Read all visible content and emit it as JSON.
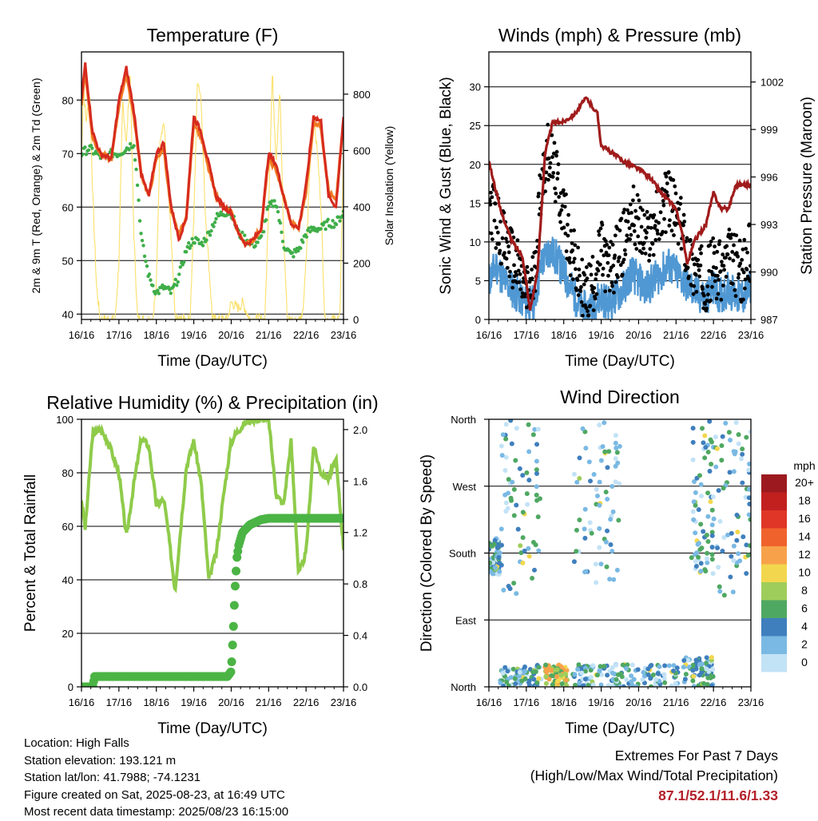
{
  "colors": {
    "temp2m": "#d62a1f",
    "temp9m": "#f07a22",
    "dewpoint": "#3fae49",
    "solar": "#fbe06a",
    "wind": "#5098d3",
    "gust": "#000000",
    "pressure": "#a01b1b",
    "rh": "#8fcb4a",
    "precip": "#4bb444",
    "extremes": "#b3202a"
  },
  "time_ticks": [
    "16/16",
    "17/16",
    "18/16",
    "19/16",
    "20/16",
    "21/16",
    "22/16",
    "23/16"
  ],
  "chart_data": [
    {
      "type": "line",
      "title": "Temperature (F)",
      "xlabel": "Time (Day/UTC)",
      "ylabel": "2m & 9m T (Red, Orange) & 2m Td (Green)",
      "y2label": "Solar Insolation (Yellow)",
      "ylim": [
        39,
        89
      ],
      "y2lim": [
        0,
        950
      ],
      "y_ticks": [
        40,
        50,
        60,
        70,
        80
      ],
      "y2_ticks": [
        0,
        200,
        400,
        600,
        800
      ],
      "x_ticks": [
        "16/16",
        "17/16",
        "18/16",
        "19/16",
        "20/16",
        "21/16",
        "22/16",
        "23/16"
      ],
      "grid": true,
      "series": [
        {
          "key": "temp2m",
          "x": [
            0,
            0.1,
            0.2,
            0.3,
            0.5,
            0.8,
            1.0,
            1.2,
            1.4,
            1.6,
            1.8,
            2.0,
            2.2,
            2.4,
            2.6,
            2.8,
            3.0,
            3.2,
            3.4,
            3.6,
            3.8,
            4.0,
            4.2,
            4.4,
            4.6,
            4.8,
            5.0,
            5.2,
            5.4,
            5.6,
            5.8,
            6.0,
            6.2,
            6.4,
            6.6,
            6.8,
            7.0
          ],
          "y": [
            80,
            87,
            80,
            74,
            70,
            69,
            80,
            86,
            78,
            66,
            62,
            70,
            72,
            60,
            54,
            58,
            77,
            74,
            68,
            62,
            60,
            59,
            55,
            53,
            54,
            56,
            70,
            68,
            62,
            57,
            56,
            64,
            77,
            76,
            62,
            60,
            77
          ]
        },
        {
          "key": "temp9m",
          "x": [
            0,
            0.1,
            0.2,
            0.3,
            0.5,
            0.8,
            1.0,
            1.2,
            1.4,
            1.6,
            1.8,
            2.0,
            2.2,
            2.4,
            2.6,
            2.8,
            3.0,
            3.2,
            3.4,
            3.6,
            3.8,
            4.0,
            4.2,
            4.4,
            4.6,
            4.8,
            5.0,
            5.2,
            5.4,
            5.6,
            5.8,
            6.0,
            6.2,
            6.4,
            6.6,
            6.8,
            7.0
          ],
          "y": [
            79,
            86,
            79,
            73,
            70,
            69,
            79,
            85,
            77,
            66,
            62,
            69,
            71,
            59,
            55,
            58,
            76,
            73,
            67,
            62,
            60,
            59,
            55,
            53,
            54,
            56,
            69,
            67,
            62,
            57,
            56,
            63,
            76,
            75,
            63,
            61,
            76
          ]
        },
        {
          "key": "dewpoint",
          "x": [
            0,
            0.2,
            0.4,
            0.6,
            0.8,
            1.0,
            1.2,
            1.4,
            1.5,
            1.6,
            1.8,
            2.0,
            2.2,
            2.4,
            2.6,
            2.8,
            3.0,
            3.2,
            3.4,
            3.6,
            3.8,
            4.0,
            4.2,
            4.4,
            4.6,
            4.8,
            5.0,
            5.2,
            5.4,
            5.6,
            5.8,
            6.0,
            6.2,
            6.4,
            6.6,
            6.8,
            7.0
          ],
          "y": [
            70,
            71,
            70,
            69,
            70,
            70,
            71,
            72,
            64,
            54,
            47,
            44,
            45,
            44,
            47,
            52,
            54,
            53,
            55,
            58,
            59,
            59,
            55,
            54,
            53,
            54,
            60,
            61,
            53,
            51,
            52,
            55,
            56,
            56,
            57,
            57,
            59
          ]
        },
        {
          "key": "solar",
          "x": [
            0,
            0.05,
            0.12,
            0.22,
            0.3,
            0.4,
            0.5,
            0.9,
            1.0,
            1.1,
            1.2,
            1.3,
            1.4,
            1.5,
            1.9,
            2.0,
            2.1,
            2.2,
            2.3,
            2.4,
            2.5,
            2.9,
            3.0,
            3.1,
            3.2,
            3.3,
            3.4,
            3.5,
            3.9,
            4.0,
            4.2,
            4.3,
            4.5,
            4.9,
            5.0,
            5.1,
            5.2,
            5.3,
            5.4,
            5.5,
            5.9,
            6.0,
            6.1,
            6.2,
            6.3,
            6.4,
            6.5,
            6.9,
            7.0
          ],
          "y": [
            560,
            840,
            700,
            800,
            450,
            120,
            0,
            0,
            200,
            780,
            620,
            880,
            300,
            0,
            0,
            120,
            650,
            700,
            500,
            280,
            0,
            0,
            350,
            860,
            780,
            400,
            200,
            0,
            0,
            60,
            40,
            60,
            0,
            0,
            400,
            880,
            560,
            820,
            300,
            0,
            0,
            200,
            540,
            720,
            600,
            400,
            0,
            0,
            600
          ]
        }
      ]
    },
    {
      "type": "line",
      "title": "Winds (mph) & Pressure (mb)",
      "xlabel": "Time (Day/UTC)",
      "ylabel": "Sonic Wind & Gust (Blue, Black)",
      "y2label": "Station Pressure (Maroon)",
      "ylim": [
        0,
        34.5
      ],
      "y2lim": [
        987,
        1003.9
      ],
      "y_ticks": [
        0,
        5,
        10,
        15,
        20,
        25,
        30
      ],
      "y2_ticks": [
        987,
        990,
        993,
        996,
        999,
        1002
      ],
      "x_ticks": [
        "16/16",
        "17/16",
        "18/16",
        "19/16",
        "20/16",
        "21/16",
        "22/16",
        "23/16"
      ],
      "grid": true,
      "series": [
        {
          "key": "wind",
          "x": [
            0,
            0.2,
            0.4,
            0.6,
            0.8,
            1.0,
            1.2,
            1.4,
            1.6,
            1.8,
            2.0,
            2.2,
            2.4,
            2.6,
            2.8,
            3.0,
            3.2,
            3.4,
            3.6,
            3.8,
            4.0,
            4.2,
            4.4,
            4.6,
            4.8,
            5.0,
            5.2,
            5.4,
            5.6,
            5.8,
            6.0,
            6.2,
            6.4,
            6.6,
            6.8,
            7.0
          ],
          "y": [
            5,
            7,
            5,
            4,
            3,
            2,
            2,
            7,
            9,
            8,
            6,
            4,
            2,
            1,
            2,
            3,
            2,
            3,
            4,
            6,
            5,
            4,
            5,
            6,
            7,
            6,
            5,
            4,
            3,
            3,
            4,
            3,
            4,
            3,
            3,
            4
          ]
        },
        {
          "key": "gust",
          "x": [
            0,
            0.2,
            0.4,
            0.6,
            0.8,
            1.0,
            1.2,
            1.4,
            1.6,
            1.8,
            2.0,
            2.2,
            2.4,
            2.6,
            2.8,
            3.0,
            3.2,
            3.4,
            3.6,
            3.8,
            4.0,
            4.2,
            4.4,
            4.6,
            4.8,
            5.0,
            5.2,
            5.4,
            5.6,
            5.8,
            6.0,
            6.2,
            6.4,
            6.6,
            6.8,
            7.0
          ],
          "y": [
            15,
            13,
            10,
            8,
            6,
            3,
            5,
            18,
            22,
            18,
            14,
            9,
            5,
            3,
            5,
            9,
            6,
            8,
            10,
            14,
            12,
            10,
            12,
            14,
            16,
            13,
            11,
            7,
            6,
            5,
            7,
            6,
            8,
            7,
            6,
            9
          ]
        },
        {
          "key": "pressure",
          "x": [
            0,
            0.3,
            0.6,
            0.9,
            1.1,
            1.3,
            1.5,
            1.7,
            2.0,
            2.3,
            2.6,
            2.9,
            3.0,
            3.3,
            3.6,
            4.0,
            4.3,
            4.6,
            5.0,
            5.2,
            5.3,
            5.5,
            5.8,
            6.0,
            6.2,
            6.4,
            6.6,
            6.8,
            7.0
          ],
          "y": [
            997,
            994,
            992,
            991,
            987.6,
            990,
            997.5,
            999.4,
            999.5,
            1000,
            1001,
            1000,
            998,
            997.5,
            997,
            996.5,
            996,
            995,
            994,
            992,
            990.5,
            992,
            993,
            995,
            994,
            994,
            995.5,
            995.5,
            995.5
          ]
        }
      ]
    },
    {
      "type": "line",
      "title": "Relative Humidity (%) & Precipitation (in)",
      "xlabel": "Time (Day/UTC)",
      "ylabel": "Percent & Total Rainfall",
      "ylim": [
        0,
        100
      ],
      "y2lim": [
        0,
        2.08
      ],
      "y_ticks": [
        0,
        20,
        40,
        60,
        80,
        100
      ],
      "y2_ticks": [
        "0.0",
        "0.4",
        "0.8",
        "1.2",
        "1.6",
        "2.0"
      ],
      "x_ticks": [
        "16/16",
        "17/16",
        "18/16",
        "19/16",
        "20/16",
        "21/16",
        "22/16",
        "23/16"
      ],
      "grid": true,
      "series": [
        {
          "key": "rh",
          "x": [
            0,
            0.1,
            0.3,
            0.5,
            0.7,
            1.0,
            1.2,
            1.4,
            1.6,
            1.8,
            2.0,
            2.2,
            2.3,
            2.5,
            2.8,
            3.0,
            3.2,
            3.4,
            3.6,
            3.8,
            4.0,
            4.2,
            4.4,
            4.6,
            4.8,
            5.0,
            5.2,
            5.4,
            5.6,
            5.8,
            6.0,
            6.2,
            6.4,
            6.6,
            6.8,
            7.0
          ],
          "y": [
            70,
            59,
            95,
            96,
            92,
            80,
            56,
            76,
            93,
            90,
            68,
            70,
            60,
            36,
            82,
            92,
            76,
            40,
            50,
            72,
            92,
            96,
            99,
            100,
            100,
            100,
            72,
            68,
            92,
            42,
            50,
            90,
            80,
            78,
            85,
            52
          ]
        },
        {
          "key": "precip",
          "x": [
            0,
            0.3,
            0.35,
            1.0,
            2.0,
            3.0,
            3.9,
            4.0,
            4.05,
            4.1,
            4.15,
            4.2,
            4.3,
            4.5,
            4.8,
            5.0,
            6.0,
            7.0
          ],
          "y": [
            0,
            0,
            0.08,
            0.08,
            0.08,
            0.08,
            0.08,
            0.12,
            0.4,
            0.75,
            1.0,
            1.1,
            1.2,
            1.26,
            1.3,
            1.31,
            1.31,
            1.31
          ]
        }
      ]
    },
    {
      "type": "scatter",
      "title": "Wind Direction",
      "xlabel": "Time (Day/UTC)",
      "ylabel": "Direction (Colored By Speed)",
      "y_categories": [
        "North",
        "East",
        "South",
        "West",
        "North"
      ],
      "ylim": [
        0,
        360
      ],
      "x_ticks": [
        "16/16",
        "17/16",
        "18/16",
        "19/16",
        "20/16",
        "21/16",
        "22/16",
        "23/16"
      ],
      "grid": true,
      "legend": {
        "title": "mph",
        "placement": "right",
        "labels": [
          "20+",
          "18",
          "16",
          "14",
          "12",
          "10",
          "8",
          "6",
          "4",
          "2",
          "0"
        ],
        "colors": [
          "#9c1a1f",
          "#c1201f",
          "#e03628",
          "#f0622c",
          "#f7a24a",
          "#f2d74e",
          "#9fcd5b",
          "#4fa862",
          "#3f7fbd",
          "#7ab9e3",
          "#c2e2f6"
        ]
      },
      "clusters": [
        {
          "x": [
            0,
            0.3
          ],
          "y": [
            150,
            200
          ]
        },
        {
          "x": [
            0.3,
            1.4
          ],
          "y": [
            120,
            360
          ]
        },
        {
          "x": [
            0.3,
            1.4
          ],
          "y": [
            0,
            30
          ]
        },
        {
          "x": [
            1.5,
            2.1
          ],
          "y": [
            0,
            30
          ]
        },
        {
          "x": [
            2.2,
            3.5
          ],
          "y": [
            140,
            360
          ]
        },
        {
          "x": [
            2.2,
            3.5
          ],
          "y": [
            0,
            30
          ]
        },
        {
          "x": [
            3.5,
            5.1
          ],
          "y": [
            0,
            30
          ]
        },
        {
          "x": [
            5.2,
            6.0
          ],
          "y": [
            0,
            40
          ]
        },
        {
          "x": [
            5.4,
            6.0
          ],
          "y": [
            150,
            360
          ]
        },
        {
          "x": [
            6.0,
            7.0
          ],
          "y": [
            120,
            360
          ]
        }
      ]
    }
  ],
  "station": {
    "location": "Location: High Falls",
    "elevation": "Station elevation: 193.121 m",
    "latlon": "Station lat/lon: 41.7988; -74.1231",
    "created": "Figure created on Sat, 2025-08-23, at 16:49 UTC",
    "recent": "Most recent data timestamp: 2025/08/23 16:15:00"
  },
  "extremes": {
    "title": "Extremes For Past 7 Days",
    "subtitle": "(High/Low/Max Wind/Total Precipitation)",
    "values": "87.1/52.1/11.6/1.33"
  }
}
